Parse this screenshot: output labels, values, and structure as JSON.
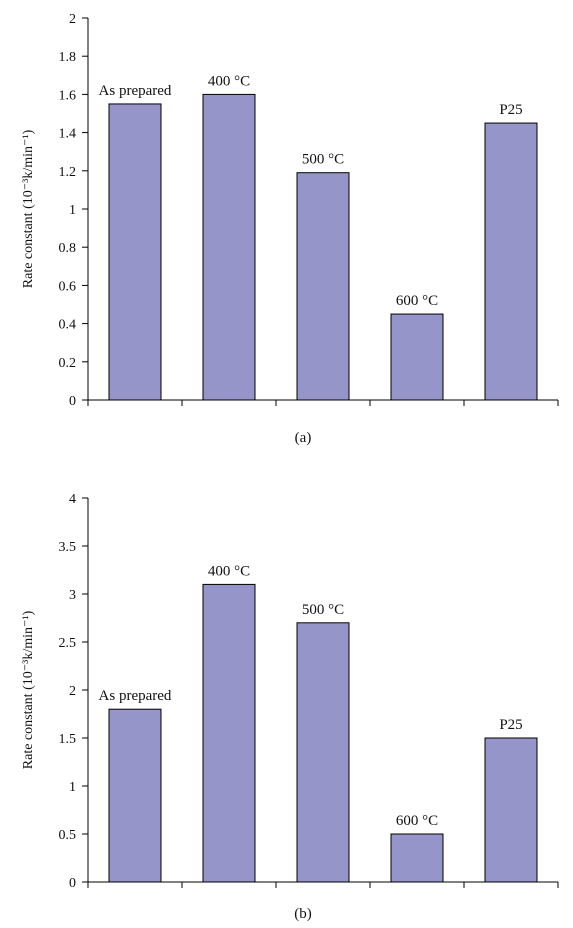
{
  "chart_data": [
    {
      "type": "bar",
      "caption": "(a)",
      "ylabel": "Rate constant (10⁻³k/min⁻¹)",
      "xlabel": "",
      "ylim": [
        0,
        2
      ],
      "yticks": [
        "0",
        "0.2",
        "0.4",
        "0.6",
        "0.8",
        "1",
        "1.2",
        "1.4",
        "1.6",
        "1.8",
        "2"
      ],
      "categories": [
        "As prepared",
        "400 °C",
        "500 °C",
        "600 °C",
        "P25"
      ],
      "values": [
        1.55,
        1.6,
        1.19,
        0.45,
        1.45
      ],
      "bar_color": "#9595c9",
      "grid": false
    },
    {
      "type": "bar",
      "caption": "(b)",
      "ylabel": "Rate constant (10⁻³k/min⁻¹)",
      "xlabel": "",
      "ylim": [
        0,
        4
      ],
      "yticks": [
        "0",
        "0.5",
        "1",
        "1.5",
        "2",
        "2.5",
        "3",
        "3.5",
        "4"
      ],
      "categories": [
        "As prepared",
        "400 °C",
        "500 °C",
        "600 °C",
        "P25"
      ],
      "values": [
        1.8,
        3.1,
        2.7,
        0.5,
        1.5
      ],
      "bar_color": "#9595c9",
      "grid": false
    }
  ]
}
